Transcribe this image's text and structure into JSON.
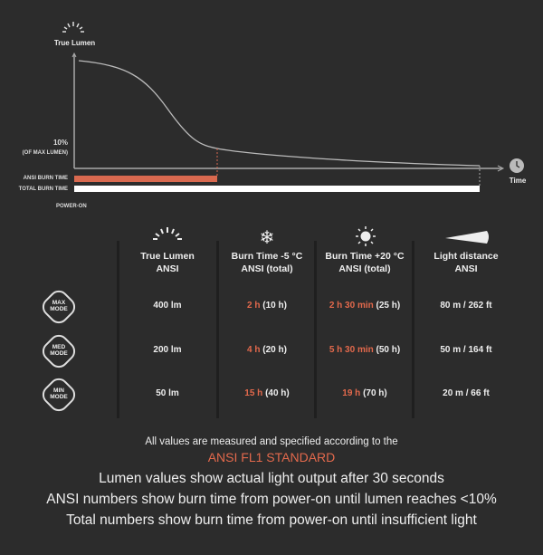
{
  "graph": {
    "y_label": "True Lumen",
    "threshold_label": "10%",
    "threshold_sub": "(OF MAX LUMEN)",
    "ansi_bar_label": "ANSI BURN TIME",
    "total_bar_label": "TOTAL BURN TIME",
    "start_label": "POWER-ON",
    "x_label": "Time",
    "ansi_color": "#d9694f"
  },
  "table": {
    "headers": [
      {
        "icon": "sunrise-icon",
        "l1": "True Lumen",
        "l2": "ANSI"
      },
      {
        "icon": "snowflake-icon",
        "l1": "Burn Time -5 °C",
        "l2": "ANSI  (total)"
      },
      {
        "icon": "sun-icon",
        "l1": "Burn Time +20 °C",
        "l2": "ANSI  (total)"
      },
      {
        "icon": "beam-icon",
        "l1": "Light distance",
        "l2": "ANSI"
      }
    ],
    "rows": [
      {
        "mode1": "MAX",
        "mode2": "MODE",
        "lumen": "400 lm",
        "cold_ansi": "2 h",
        "cold_total": "(10 h)",
        "warm_ansi": "2 h 30 min",
        "warm_total": "(25 h)",
        "distance": "80 m / 262 ft"
      },
      {
        "mode1": "MED",
        "mode2": "MODE",
        "lumen": "200 lm",
        "cold_ansi": "4 h",
        "cold_total": "(20 h)",
        "warm_ansi": "5 h 30 min",
        "warm_total": "(50 h)",
        "distance": "50 m / 164 ft"
      },
      {
        "mode1": "MIN",
        "mode2": "MODE",
        "lumen": "50 lm",
        "cold_ansi": "15 h",
        "cold_total": "(40 h)",
        "warm_ansi": "19 h",
        "warm_total": "(70 h)",
        "distance": "20 m / 66 ft"
      }
    ]
  },
  "footer": {
    "line1": "All values are measured and specified according to the",
    "standard": "ANSI FL1 STANDARD",
    "note1": "Lumen values show actual light output after 30 seconds",
    "note2": "ANSI numbers show burn time from power-on until lumen reaches <10%",
    "note3": "Total numbers show burn time from power-on until insufficient light"
  }
}
